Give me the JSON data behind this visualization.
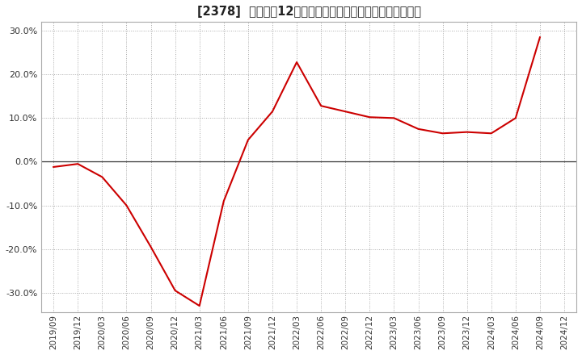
{
  "title": "[2378]  売上高の12か月移動合計の対前年同期増減率の推移",
  "line_color": "#cc0000",
  "background_color": "#ffffff",
  "plot_bg_color": "#ffffff",
  "grid_color": "#aaaaaa",
  "zero_line_color": "#333333",
  "ylim": [
    -0.345,
    0.32
  ],
  "yticks": [
    -0.3,
    -0.2,
    -0.1,
    0.0,
    0.1,
    0.2,
    0.3
  ],
  "dates": [
    "2019/09",
    "2019/12",
    "2020/03",
    "2020/06",
    "2020/09",
    "2020/12",
    "2021/03",
    "2021/06",
    "2021/09",
    "2021/12",
    "2022/03",
    "2022/06",
    "2022/09",
    "2022/12",
    "2023/03",
    "2023/06",
    "2023/09",
    "2023/12",
    "2024/03",
    "2024/06",
    "2024/09",
    "2024/12"
  ],
  "values": [
    -0.012,
    -0.005,
    -0.035,
    -0.1,
    -0.195,
    -0.295,
    -0.33,
    -0.09,
    0.05,
    0.115,
    0.228,
    0.128,
    0.115,
    0.102,
    0.1,
    0.075,
    0.065,
    0.068,
    0.065,
    0.1,
    0.285,
    null
  ]
}
